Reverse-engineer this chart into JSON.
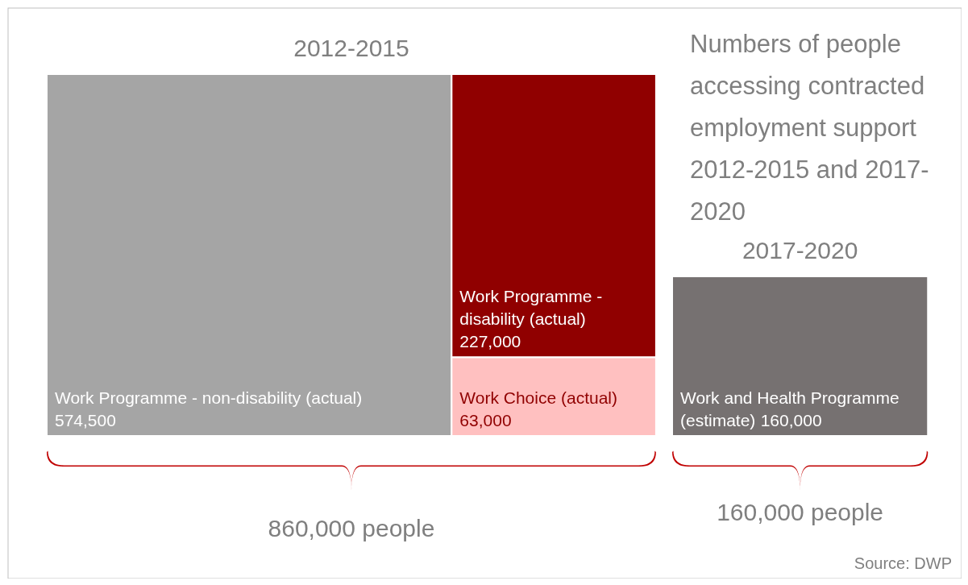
{
  "chart_data": [
    {
      "type": "other",
      "title": "2012-2015",
      "categories": [
        "Work Programme - non-disability (actual)",
        "Work Programme - disability (actual)",
        "Work Choice (actual)"
      ],
      "values": [
        574500,
        227000,
        63000
      ],
      "value_labels": [
        "574,500",
        "227,000",
        "63,000"
      ],
      "colors": [
        "#a5a5a5",
        "#900000",
        "#ffc0c0"
      ],
      "totals": [
        "860,000 people"
      ]
    },
    {
      "type": "other",
      "title": "Numbers of people accessing contracted employment support 2012-2015 and 2017-2020",
      "annotations": [
        "Source: DWP"
      ]
    },
    {
      "type": "other",
      "title": "2017-2020",
      "categories": [
        "Work and Health Programme (estimate)"
      ],
      "values": [
        160000
      ],
      "value_labels": [
        "160,000"
      ],
      "colors": [
        "#767171"
      ],
      "totals": [
        "160,000 people"
      ]
    }
  ]
}
